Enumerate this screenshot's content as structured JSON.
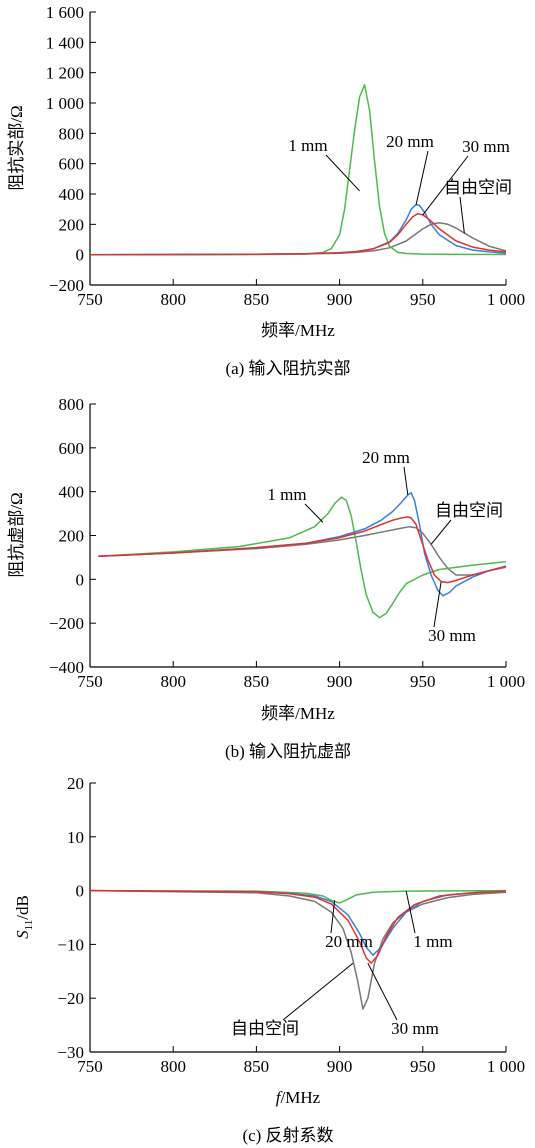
{
  "chart_data": [
    {
      "type": "line",
      "caption": "(a) 输入阻抗实部",
      "xlabel": "频率/MHz",
      "ylabel": "阻抗实部/Ω",
      "xlim": [
        750,
        1000
      ],
      "ylim": [
        -200,
        1600
      ],
      "xticks": [
        750,
        800,
        850,
        900,
        950,
        1000
      ],
      "xtick_labels": [
        "750",
        "800",
        "850",
        "900",
        "950",
        "1 000"
      ],
      "yticks": [
        -200,
        0,
        200,
        400,
        600,
        800,
        1000,
        1200,
        1400,
        1600
      ],
      "ytick_labels": [
        "−200",
        "0",
        "200",
        "400",
        "600",
        "800",
        "1 000",
        "1 200",
        "1 400",
        "1 600"
      ],
      "grid": false,
      "series": [
        {
          "name": "1 mm",
          "color": "#4cbb4c",
          "x": [
            750,
            800,
            850,
            880,
            890,
            895,
            900,
            903,
            906,
            909,
            912,
            915,
            918,
            921,
            924,
            927,
            930,
            935,
            940,
            950,
            970,
            1000
          ],
          "y": [
            0,
            0,
            1,
            4,
            15,
            40,
            130,
            300,
            560,
            820,
            1040,
            1120,
            950,
            620,
            320,
            140,
            55,
            15,
            8,
            4,
            2,
            1
          ]
        },
        {
          "name": "20 mm",
          "color": "#3a7fd5",
          "x": [
            750,
            800,
            850,
            880,
            900,
            910,
            920,
            930,
            935,
            940,
            943,
            946,
            948,
            951,
            955,
            960,
            970,
            980,
            990,
            1000
          ],
          "y": [
            0,
            1,
            3,
            6,
            12,
            20,
            38,
            85,
            140,
            230,
            300,
            330,
            325,
            280,
            200,
            130,
            60,
            30,
            18,
            10
          ]
        },
        {
          "name": "30 mm",
          "color": "#e03232",
          "x": [
            750,
            800,
            850,
            880,
            900,
            910,
            920,
            930,
            935,
            940,
            944,
            947,
            950,
            954,
            960,
            970,
            980,
            990,
            1000
          ],
          "y": [
            0,
            1,
            3,
            6,
            12,
            20,
            38,
            80,
            130,
            200,
            250,
            270,
            262,
            230,
            170,
            90,
            50,
            30,
            18
          ]
        },
        {
          "name": "自由空间",
          "color": "#777777",
          "x": [
            750,
            800,
            850,
            880,
            900,
            910,
            920,
            930,
            940,
            945,
            950,
            955,
            960,
            965,
            970,
            980,
            990,
            1000
          ],
          "y": [
            0,
            1,
            3,
            5,
            10,
            15,
            25,
            45,
            90,
            130,
            170,
            200,
            210,
            200,
            175,
            110,
            55,
            25
          ]
        }
      ],
      "annotations": [
        {
          "text": "1 mm",
          "series": "1 mm",
          "at": [
            912,
            420
          ]
        },
        {
          "text": "20 mm",
          "series": "20 mm",
          "at": [
            946,
            330
          ]
        },
        {
          "text": "30 mm",
          "series": "30 mm",
          "at": [
            950,
            262
          ]
        },
        {
          "text": "自由空间",
          "series": "自由空间",
          "at": [
            975,
            140
          ]
        }
      ]
    },
    {
      "type": "line",
      "caption": "(b) 输入阻抗虚部",
      "xlabel": "频率/MHz",
      "ylabel": "阻抗虚部/Ω",
      "xlim": [
        750,
        1000
      ],
      "ylim": [
        -400,
        800
      ],
      "xticks": [
        750,
        800,
        850,
        900,
        950,
        1000
      ],
      "xtick_labels": [
        "750",
        "800",
        "850",
        "900",
        "950",
        "1 000"
      ],
      "yticks": [
        -400,
        -200,
        0,
        200,
        400,
        600,
        800
      ],
      "ytick_labels": [
        "−400",
        "−200",
        "0",
        "200",
        "400",
        "600",
        "800"
      ],
      "grid": false,
      "series": [
        {
          "name": "1 mm",
          "color": "#4cbb4c",
          "x": [
            755,
            800,
            840,
            870,
            885,
            893,
            897,
            901,
            904,
            907,
            910,
            913,
            916,
            920,
            924,
            928,
            932,
            936,
            940,
            950,
            960,
            980,
            1000
          ],
          "y": [
            105,
            125,
            150,
            190,
            240,
            300,
            345,
            375,
            360,
            290,
            170,
            40,
            -70,
            -150,
            -175,
            -155,
            -110,
            -60,
            -20,
            20,
            45,
            65,
            80
          ]
        },
        {
          "name": "20 mm",
          "color": "#3a7fd5",
          "x": [
            755,
            800,
            850,
            880,
            900,
            915,
            925,
            932,
            937,
            941,
            943,
            945,
            948,
            951,
            955,
            959,
            962,
            966,
            970,
            980,
            990,
            1000
          ],
          "y": [
            105,
            120,
            145,
            165,
            195,
            230,
            270,
            310,
            350,
            385,
            395,
            360,
            250,
            120,
            20,
            -50,
            -75,
            -60,
            -30,
            10,
            40,
            60
          ]
        },
        {
          "name": "30 mm",
          "color": "#e03232",
          "x": [
            755,
            800,
            850,
            880,
            900,
            915,
            925,
            932,
            937,
            941,
            943,
            946,
            949,
            953,
            957,
            961,
            965,
            970,
            980,
            990,
            1000
          ],
          "y": [
            105,
            120,
            145,
            165,
            190,
            220,
            250,
            270,
            280,
            285,
            280,
            250,
            180,
            90,
            20,
            -10,
            -15,
            -5,
            20,
            40,
            60
          ]
        },
        {
          "name": "自由空间",
          "color": "#777777",
          "x": [
            755,
            800,
            850,
            880,
            900,
            915,
            925,
            935,
            942,
            946,
            950,
            955,
            960,
            965,
            970,
            980,
            990,
            1000
          ],
          "y": [
            105,
            120,
            140,
            160,
            180,
            200,
            215,
            230,
            240,
            235,
            210,
            160,
            100,
            50,
            20,
            20,
            40,
            55
          ]
        }
      ],
      "annotations": [
        {
          "text": "1 mm",
          "series": "1 mm",
          "at": [
            890,
            260
          ]
        },
        {
          "text": "20 mm",
          "series": "20 mm",
          "at": [
            941,
            385
          ]
        },
        {
          "text": "自由空间",
          "series": "自由空间",
          "at": [
            955,
            160
          ]
        },
        {
          "text": "30 mm",
          "series": "30 mm",
          "at": [
            961,
            -12
          ]
        }
      ]
    },
    {
      "type": "line",
      "caption": "(c) 反射系数",
      "xlabel": "f/MHz",
      "ylabel": "S11/dB",
      "xlim": [
        750,
        1000
      ],
      "ylim": [
        -30,
        20
      ],
      "xticks": [
        750,
        800,
        850,
        900,
        950,
        1000
      ],
      "xtick_labels": [
        "750",
        "800",
        "850",
        "900",
        "950",
        "1 000"
      ],
      "yticks": [
        -30,
        -20,
        -10,
        0,
        10,
        20
      ],
      "ytick_labels": [
        "−30",
        "−20",
        "−10",
        "0",
        "10",
        "20"
      ],
      "grid": false,
      "series": [
        {
          "name": "1 mm",
          "color": "#4cbb4c",
          "x": [
            750,
            850,
            880,
            890,
            895,
            900,
            905,
            910,
            920,
            940,
            1000
          ],
          "y": [
            0,
            -0.1,
            -0.5,
            -1.0,
            -1.8,
            -2.3,
            -1.6,
            -0.8,
            -0.3,
            -0.1,
            0
          ]
        },
        {
          "name": "20 mm",
          "color": "#3a7fd5",
          "x": [
            750,
            850,
            870,
            885,
            895,
            905,
            912,
            916,
            920,
            925,
            932,
            940,
            950,
            965,
            980,
            1000
          ],
          "y": [
            0,
            -0.2,
            -0.5,
            -1.0,
            -2.0,
            -4.5,
            -8.0,
            -10.5,
            -12.0,
            -10.5,
            -7.0,
            -4.0,
            -2.0,
            -0.8,
            -0.4,
            -0.1
          ]
        },
        {
          "name": "30 mm",
          "color": "#e03232",
          "x": [
            750,
            850,
            870,
            885,
            895,
            905,
            912,
            916,
            919,
            923,
            928,
            935,
            945,
            960,
            980,
            1000
          ],
          "y": [
            0,
            -0.2,
            -0.6,
            -1.2,
            -2.5,
            -5.5,
            -9.5,
            -12.5,
            -13.5,
            -12.0,
            -8.5,
            -5.0,
            -2.6,
            -1.0,
            -0.4,
            -0.1
          ]
        },
        {
          "name": "自由空间",
          "color": "#777777",
          "x": [
            750,
            850,
            870,
            885,
            895,
            902,
            907,
            911,
            914,
            917,
            921,
            926,
            932,
            940,
            950,
            965,
            980,
            1000
          ],
          "y": [
            0,
            -0.4,
            -1.0,
            -2.0,
            -4.0,
            -7.0,
            -11.5,
            -17.0,
            -22.0,
            -20.0,
            -13.5,
            -9.0,
            -6.0,
            -4.0,
            -2.5,
            -1.3,
            -0.7,
            -0.3
          ]
        }
      ],
      "annotations": [
        {
          "text": "20 mm",
          "series": "20 mm",
          "at": [
            897,
            -1.8
          ]
        },
        {
          "text": "1 mm",
          "series": "1 mm",
          "at": [
            940,
            -0.1
          ]
        },
        {
          "text": "自由空间",
          "series": "自由空间",
          "at": [
            908,
            -13.5
          ]
        },
        {
          "text": "30 mm",
          "series": "30 mm",
          "at": [
            917,
            -13.5
          ]
        }
      ]
    }
  ]
}
